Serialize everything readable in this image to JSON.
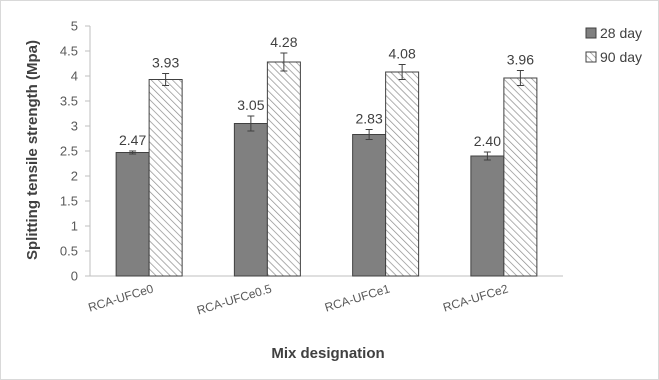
{
  "chart_data": {
    "type": "bar",
    "categories": [
      "RCA-UFCe0",
      "RCA-UFCe0.5",
      "RCA-UFCe1",
      "RCA-UFCe2"
    ],
    "series": [
      {
        "name": "28 day",
        "values": [
          2.47,
          3.05,
          2.83,
          2.4
        ],
        "errors": [
          0.03,
          0.15,
          0.1,
          0.08
        ],
        "labels": [
          "2.47",
          "3.05",
          "2.83",
          "2.40"
        ],
        "color": "#808080",
        "pattern": "solid"
      },
      {
        "name": "90 day",
        "values": [
          3.93,
          4.28,
          4.08,
          3.96
        ],
        "errors": [
          0.12,
          0.18,
          0.15,
          0.15
        ],
        "labels": [
          "3.93",
          "4.28",
          "4.08",
          "3.96"
        ],
        "color": "#ffffff",
        "pattern": "diagonal-hatch"
      }
    ],
    "xlabel": "Mix designation",
    "ylabel": "Splitting tensile strength (Mpa)",
    "ylim": [
      0,
      5
    ],
    "yticks": [
      "0",
      "0.5",
      "1",
      "1.5",
      "2",
      "2.5",
      "3",
      "3.5",
      "4",
      "4.5",
      "5"
    ],
    "grid": false,
    "legend_position": "right"
  }
}
